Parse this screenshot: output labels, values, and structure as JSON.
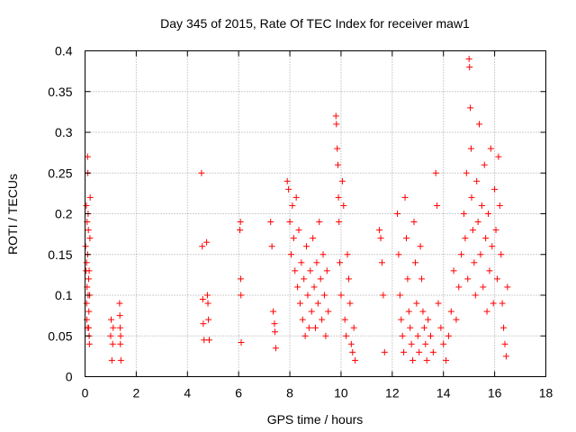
{
  "chart_data": {
    "type": "scatter",
    "title": "Day 345 of 2015, Rate Of TEC Index for receiver maw1",
    "xlabel": "GPS time / hours",
    "ylabel": "ROTI / TECUs",
    "xlim": [
      0,
      18
    ],
    "ylim": [
      0,
      0.4
    ],
    "x_ticks": [
      0,
      2,
      4,
      6,
      8,
      10,
      12,
      14,
      16,
      18
    ],
    "x_tick_labels": [
      "0",
      "2",
      "4",
      "6",
      "8",
      "10",
      "12",
      "14",
      "16",
      "18"
    ],
    "y_ticks": [
      0,
      0.05,
      0.1,
      0.15,
      0.2,
      0.25,
      0.3,
      0.35,
      0.4
    ],
    "y_tick_labels": [
      "0",
      "0.05",
      "0.1",
      "0.15",
      "0.2",
      "0.25",
      "0.3",
      "0.35",
      "0.4"
    ],
    "grid": true,
    "marker": "+",
    "marker_color": "#ff0000",
    "series": [
      {
        "name": "ROTI",
        "points": [
          [
            0.02,
            0.16
          ],
          [
            0.04,
            0.13
          ],
          [
            0.05,
            0.21
          ],
          [
            0.06,
            0.09
          ],
          [
            0.07,
            0.07
          ],
          [
            0.08,
            0.11
          ],
          [
            0.09,
            0.06
          ],
          [
            0.1,
            0.15
          ],
          [
            0.1,
            0.27
          ],
          [
            0.11,
            0.25
          ],
          [
            0.12,
            0.2
          ],
          [
            0.13,
            0.18
          ],
          [
            0.14,
            0.12
          ],
          [
            0.15,
            0.08
          ],
          [
            0.16,
            0.05
          ],
          [
            0.17,
            0.04
          ],
          [
            0.18,
            0.1
          ],
          [
            0.19,
            0.17
          ],
          [
            0.2,
            0.22
          ],
          [
            0.06,
            0.14
          ],
          [
            0.08,
            0.19
          ],
          [
            0.12,
            0.1
          ],
          [
            0.14,
            0.06
          ],
          [
            0.16,
            0.13
          ],
          [
            1.0,
            0.05
          ],
          [
            1.02,
            0.07
          ],
          [
            1.05,
            0.02
          ],
          [
            1.08,
            0.04
          ],
          [
            1.1,
            0.06
          ],
          [
            1.35,
            0.09
          ],
          [
            1.37,
            0.06
          ],
          [
            1.38,
            0.04
          ],
          [
            1.4,
            0.02
          ],
          [
            1.36,
            0.075
          ],
          [
            1.39,
            0.05
          ],
          [
            4.55,
            0.25
          ],
          [
            4.58,
            0.16
          ],
          [
            4.6,
            0.095
          ],
          [
            4.62,
            0.065
          ],
          [
            4.65,
            0.045
          ],
          [
            4.75,
            0.165
          ],
          [
            4.78,
            0.1
          ],
          [
            4.8,
            0.09
          ],
          [
            4.82,
            0.07
          ],
          [
            4.85,
            0.045
          ],
          [
            6.05,
            0.18
          ],
          [
            6.07,
            0.19
          ],
          [
            6.08,
            0.12
          ],
          [
            6.09,
            0.1
          ],
          [
            6.1,
            0.042
          ],
          [
            7.25,
            0.19
          ],
          [
            7.3,
            0.16
          ],
          [
            7.35,
            0.08
          ],
          [
            7.4,
            0.065
          ],
          [
            7.42,
            0.055
          ],
          [
            7.45,
            0.035
          ],
          [
            7.9,
            0.24
          ],
          [
            7.95,
            0.23
          ],
          [
            8.0,
            0.19
          ],
          [
            8.05,
            0.15
          ],
          [
            8.1,
            0.21
          ],
          [
            8.15,
            0.17
          ],
          [
            8.2,
            0.13
          ],
          [
            8.25,
            0.22
          ],
          [
            8.3,
            0.11
          ],
          [
            8.35,
            0.18
          ],
          [
            8.4,
            0.09
          ],
          [
            8.45,
            0.14
          ],
          [
            8.5,
            0.07
          ],
          [
            8.55,
            0.12
          ],
          [
            8.6,
            0.05
          ],
          [
            8.65,
            0.16
          ],
          [
            8.7,
            0.1
          ],
          [
            8.75,
            0.06
          ],
          [
            8.8,
            0.13
          ],
          [
            8.85,
            0.08
          ],
          [
            8.9,
            0.17
          ],
          [
            8.95,
            0.11
          ],
          [
            9.0,
            0.06
          ],
          [
            9.05,
            0.14
          ],
          [
            9.1,
            0.09
          ],
          [
            9.15,
            0.19
          ],
          [
            9.2,
            0.12
          ],
          [
            9.25,
            0.07
          ],
          [
            9.3,
            0.15
          ],
          [
            9.35,
            0.1
          ],
          [
            9.4,
            0.05
          ],
          [
            9.45,
            0.13
          ],
          [
            9.5,
            0.08
          ],
          [
            9.8,
            0.32
          ],
          [
            9.82,
            0.31
          ],
          [
            9.85,
            0.28
          ],
          [
            9.88,
            0.26
          ],
          [
            9.9,
            0.22
          ],
          [
            9.92,
            0.19
          ],
          [
            9.95,
            0.14
          ],
          [
            10.0,
            0.1
          ],
          [
            10.05,
            0.24
          ],
          [
            10.1,
            0.21
          ],
          [
            10.15,
            0.07
          ],
          [
            10.2,
            0.05
          ],
          [
            10.25,
            0.15
          ],
          [
            10.3,
            0.12
          ],
          [
            10.35,
            0.09
          ],
          [
            10.4,
            0.04
          ],
          [
            10.45,
            0.03
          ],
          [
            10.5,
            0.06
          ],
          [
            10.55,
            0.02
          ],
          [
            11.5,
            0.18
          ],
          [
            11.55,
            0.17
          ],
          [
            11.6,
            0.14
          ],
          [
            11.65,
            0.1
          ],
          [
            11.7,
            0.03
          ],
          [
            12.2,
            0.2
          ],
          [
            12.25,
            0.15
          ],
          [
            12.3,
            0.1
          ],
          [
            12.35,
            0.07
          ],
          [
            12.4,
            0.05
          ],
          [
            12.45,
            0.03
          ],
          [
            12.5,
            0.22
          ],
          [
            12.55,
            0.17
          ],
          [
            12.6,
            0.12
          ],
          [
            12.65,
            0.08
          ],
          [
            12.7,
            0.06
          ],
          [
            12.75,
            0.04
          ],
          [
            12.8,
            0.02
          ],
          [
            12.85,
            0.19
          ],
          [
            12.9,
            0.14
          ],
          [
            12.95,
            0.09
          ],
          [
            13.0,
            0.05
          ],
          [
            13.05,
            0.03
          ],
          [
            13.1,
            0.16
          ],
          [
            13.15,
            0.12
          ],
          [
            13.2,
            0.08
          ],
          [
            13.25,
            0.06
          ],
          [
            13.3,
            0.04
          ],
          [
            13.35,
            0.02
          ],
          [
            13.4,
            0.07
          ],
          [
            13.5,
            0.05
          ],
          [
            13.6,
            0.03
          ],
          [
            13.7,
            0.25
          ],
          [
            13.75,
            0.21
          ],
          [
            13.8,
            0.09
          ],
          [
            13.9,
            0.06
          ],
          [
            14.0,
            0.04
          ],
          [
            14.1,
            0.02
          ],
          [
            14.2,
            0.05
          ],
          [
            14.3,
            0.08
          ],
          [
            14.4,
            0.13
          ],
          [
            14.5,
            0.07
          ],
          [
            14.6,
            0.11
          ],
          [
            14.7,
            0.15
          ],
          [
            14.8,
            0.2
          ],
          [
            14.85,
            0.17
          ],
          [
            14.9,
            0.25
          ],
          [
            14.95,
            0.12
          ],
          [
            15.0,
            0.39
          ],
          [
            15.02,
            0.38
          ],
          [
            15.05,
            0.33
          ],
          [
            15.08,
            0.28
          ],
          [
            15.1,
            0.22
          ],
          [
            15.15,
            0.18
          ],
          [
            15.2,
            0.14
          ],
          [
            15.25,
            0.1
          ],
          [
            15.3,
            0.24
          ],
          [
            15.35,
            0.19
          ],
          [
            15.4,
            0.31
          ],
          [
            15.45,
            0.15
          ],
          [
            15.5,
            0.21
          ],
          [
            15.55,
            0.11
          ],
          [
            15.6,
            0.26
          ],
          [
            15.65,
            0.17
          ],
          [
            15.7,
            0.08
          ],
          [
            15.75,
            0.2
          ],
          [
            15.8,
            0.13
          ],
          [
            15.85,
            0.28
          ],
          [
            15.9,
            0.16
          ],
          [
            15.95,
            0.09
          ],
          [
            16.0,
            0.23
          ],
          [
            16.05,
            0.18
          ],
          [
            16.1,
            0.12
          ],
          [
            16.15,
            0.27
          ],
          [
            16.2,
            0.21
          ],
          [
            16.25,
            0.15
          ],
          [
            16.3,
            0.09
          ],
          [
            16.35,
            0.06
          ],
          [
            16.4,
            0.04
          ],
          [
            16.45,
            0.025
          ],
          [
            16.5,
            0.11
          ]
        ]
      }
    ]
  }
}
